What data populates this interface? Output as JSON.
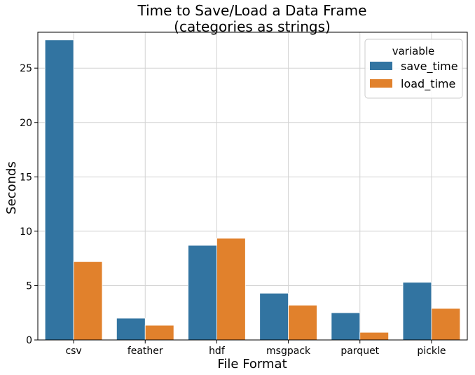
{
  "chart_data": {
    "type": "bar",
    "title_line1": "Time to Save/Load a Data Frame",
    "title_line2": "(categories as strings)",
    "xlabel": "File Format",
    "ylabel": "Seconds",
    "categories": [
      "csv",
      "feather",
      "hdf",
      "msgpack",
      "parquet",
      "pickle"
    ],
    "series": [
      {
        "name": "save_time",
        "color": "#3274a1",
        "values": [
          27.6,
          2.0,
          8.7,
          4.3,
          2.5,
          5.3
        ]
      },
      {
        "name": "load_time",
        "color": "#e1812c",
        "values": [
          7.2,
          1.35,
          9.35,
          3.2,
          0.7,
          2.9
        ]
      }
    ],
    "ylim": [
      0,
      28.3
    ],
    "yticks": [
      0,
      5,
      10,
      15,
      20,
      25
    ],
    "grid": true,
    "legend": {
      "title": "variable",
      "placement": "top-right"
    }
  }
}
